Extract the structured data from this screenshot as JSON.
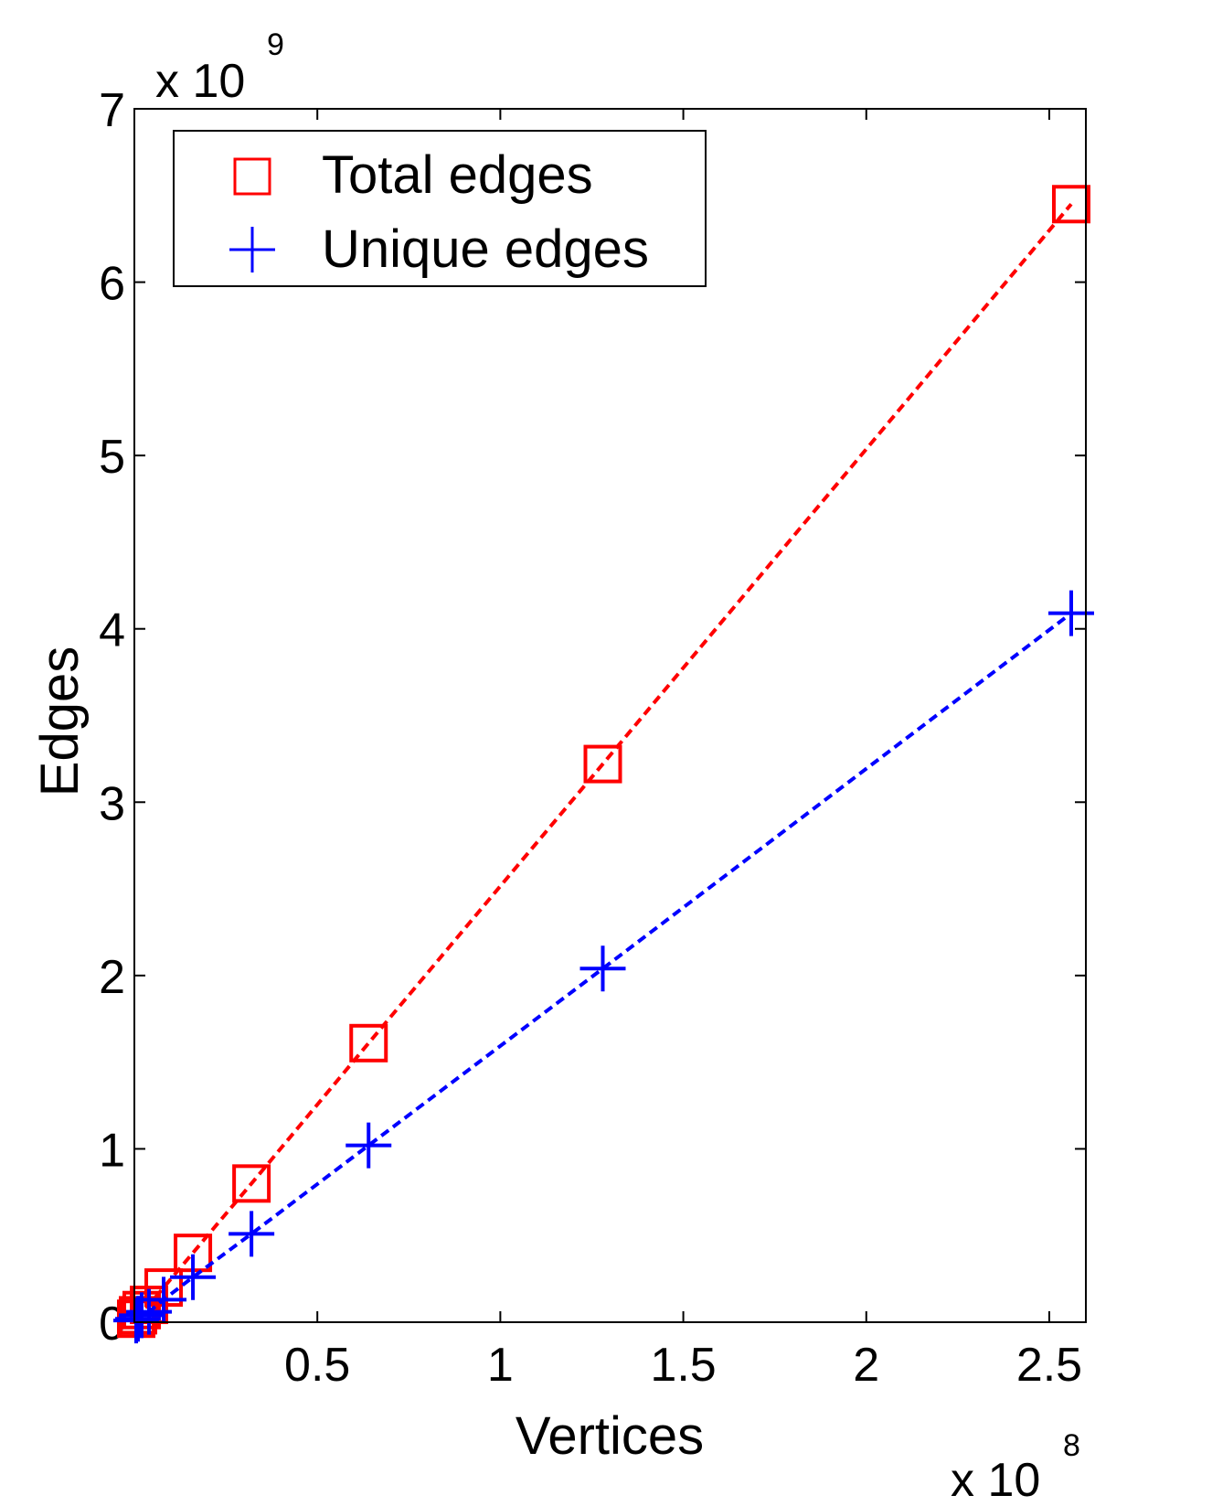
{
  "chart_data": {
    "type": "scatter",
    "xlabel": "Vertices",
    "ylabel": "Edges",
    "x_multiplier_label": {
      "base": "x 10",
      "exp": "8"
    },
    "y_multiplier_label": {
      "base": "x 10",
      "exp": "9"
    },
    "xlim": [
      0,
      2.6
    ],
    "ylim": [
      0,
      7
    ],
    "x_ticks": [
      {
        "value": 0.5,
        "label": "0.5"
      },
      {
        "value": 1,
        "label": "1"
      },
      {
        "value": 1.5,
        "label": "1.5"
      },
      {
        "value": 2,
        "label": "2"
      },
      {
        "value": 2.5,
        "label": "2.5"
      }
    ],
    "y_ticks": [
      {
        "value": 0,
        "label": "0"
      },
      {
        "value": 1,
        "label": "1"
      },
      {
        "value": 2,
        "label": "2"
      },
      {
        "value": 3,
        "label": "3"
      },
      {
        "value": 4,
        "label": "4"
      },
      {
        "value": 5,
        "label": "5"
      },
      {
        "value": 6,
        "label": "6"
      },
      {
        "value": 7,
        "label": "7"
      }
    ],
    "grid": false,
    "legend_position": "top-left",
    "series": [
      {
        "name": "Total edges",
        "marker": "square",
        "line": "dashed",
        "color": "#ff0000",
        "x": [
          0.005,
          0.01,
          0.02,
          0.04,
          0.08,
          0.16,
          0.32,
          0.64,
          1.28,
          2.56
        ],
        "y": [
          0.02,
          0.04,
          0.07,
          0.1,
          0.2,
          0.4,
          0.8,
          1.61,
          3.22,
          6.45
        ]
      },
      {
        "name": "Unique edges",
        "marker": "plus",
        "line": "dashed",
        "color": "#0000ff",
        "x": [
          0.005,
          0.01,
          0.02,
          0.04,
          0.08,
          0.16,
          0.32,
          0.64,
          1.28,
          2.56
        ],
        "y": [
          0.01,
          0.02,
          0.04,
          0.06,
          0.13,
          0.26,
          0.51,
          1.02,
          2.04,
          4.09
        ]
      }
    ]
  }
}
